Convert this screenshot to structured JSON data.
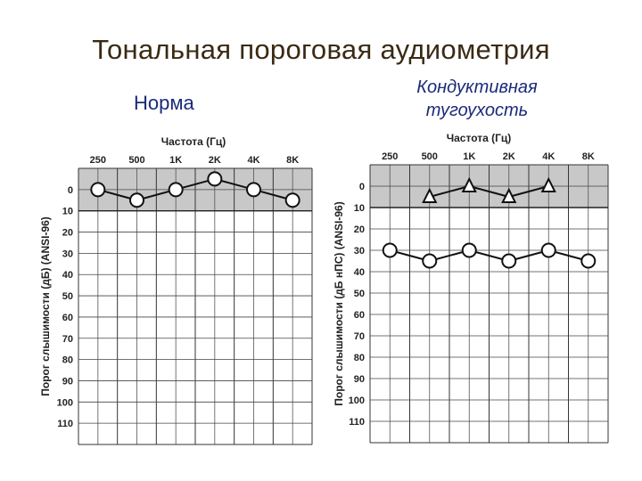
{
  "slide": {
    "title": "Тональная пороговая аудиометрия"
  },
  "chart_data": [
    {
      "type": "line",
      "subtitle": "Норма",
      "xlabel": "Частота (Гц)",
      "ylabel": "Порог слышимости (дБ) (ANSI-96)",
      "categories": [
        "250",
        "500",
        "1K",
        "2K",
        "4K",
        "8K"
      ],
      "y_ticks": [
        0,
        10,
        20,
        30,
        40,
        50,
        60,
        70,
        80,
        90,
        100,
        110
      ],
      "ylim": [
        -10,
        120
      ],
      "y_inverted": true,
      "shaded_band": [
        -10,
        10
      ],
      "grid": true,
      "series": [
        {
          "marker": "circle",
          "values": [
            0,
            5,
            0,
            -5,
            0,
            5
          ]
        }
      ]
    },
    {
      "type": "line",
      "subtitle": "Кондуктивная тугоухость",
      "xlabel": "Частота (Гц)",
      "ylabel": "Порог слышимости (дБ нПС) (ANSI-96)",
      "categories": [
        "250",
        "500",
        "1K",
        "2K",
        "4K",
        "8K"
      ],
      "y_ticks": [
        0,
        10,
        20,
        30,
        40,
        50,
        60,
        70,
        80,
        90,
        100,
        110
      ],
      "ylim": [
        -10,
        120
      ],
      "y_inverted": true,
      "shaded_band": [
        -10,
        10
      ],
      "grid": true,
      "series": [
        {
          "marker": "triangle",
          "values": [
            null,
            5,
            0,
            5,
            0,
            null
          ]
        },
        {
          "marker": "circle",
          "values": [
            30,
            35,
            30,
            35,
            30,
            35
          ]
        }
      ]
    }
  ]
}
